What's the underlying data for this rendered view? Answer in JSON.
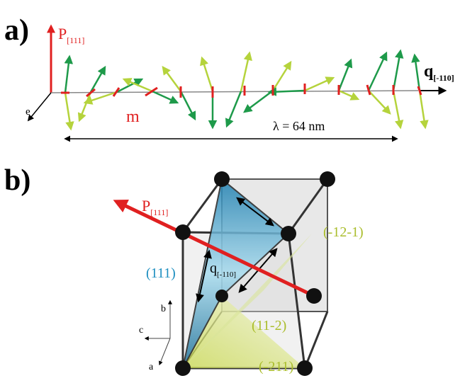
{
  "panel_a": {
    "label": "a)",
    "polarization": {
      "symbol": "P",
      "subscript": "[111]"
    },
    "axis_e": "e",
    "magnetization": "m",
    "wavevector": {
      "symbol": "q",
      "subscript": "[-110]"
    },
    "wavelength": "λ = 64 nm"
  },
  "panel_b": {
    "label": "b)",
    "polarization": {
      "symbol": "P",
      "subscript": "[111]"
    },
    "plane_111": "(111)",
    "wavevector": {
      "symbol": "q",
      "subscript": "[-110]"
    },
    "plane_m12m1": "(-12-1)",
    "plane_11m2": "(11-2)",
    "plane_m211": "(-211)",
    "axis_b": "b",
    "axis_c": "c",
    "axis_a": "a"
  }
}
